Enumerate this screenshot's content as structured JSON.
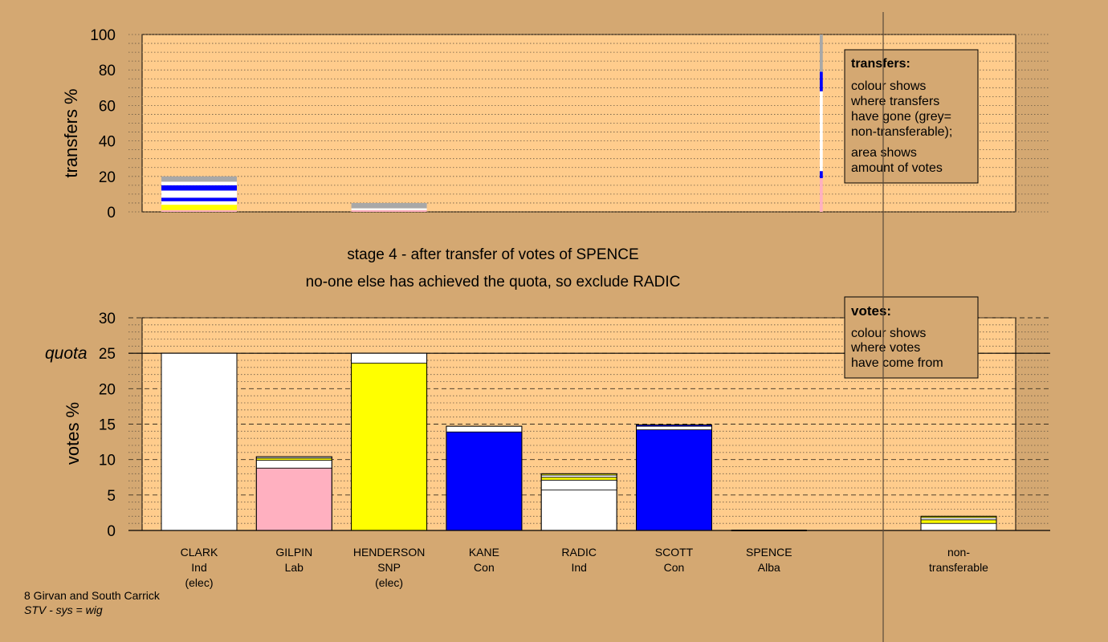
{
  "transfers_chart": {
    "ylabel": "transfers %",
    "ylim": [
      0,
      100
    ],
    "yticks": [
      0,
      20,
      40,
      60,
      80,
      100
    ],
    "legend": {
      "title": "transfers:",
      "lines_a": [
        "colour shows",
        "where transfers",
        "have gone (grey=",
        "non-transferable);"
      ],
      "lines_b": [
        "area shows",
        "amount of votes"
      ]
    }
  },
  "votes_chart": {
    "ylabel": "votes %",
    "ylim": [
      0,
      30
    ],
    "yticks": [
      0,
      5,
      10,
      15,
      20,
      25,
      30
    ],
    "quota_label": "quota",
    "quota_value": 25,
    "legend": {
      "title": "votes:",
      "lines": [
        "colour shows",
        "where votes",
        "have come from"
      ]
    }
  },
  "stage": {
    "line1": "stage 4 - after transfer of votes of SPENCE",
    "line2": "no-one else has achieved the quota, so exclude RADIC"
  },
  "candidates": [
    {
      "name": "CLARK",
      "party": "Ind",
      "note": "(elec)"
    },
    {
      "name": "GILPIN",
      "party": "Lab",
      "note": ""
    },
    {
      "name": "HENDERSON",
      "party": "SNP",
      "note": "(elec)"
    },
    {
      "name": "KANE",
      "party": "Con",
      "note": ""
    },
    {
      "name": "RADIC",
      "party": "Ind",
      "note": ""
    },
    {
      "name": "SCOTT",
      "party": "Con",
      "note": ""
    },
    {
      "name": "SPENCE",
      "party": "Alba",
      "note": ""
    }
  ],
  "nontransferable_label": [
    "non-",
    "transferable"
  ],
  "footer": {
    "ward": "8 Girvan and South Carrick",
    "system": "STV - sys = wig"
  },
  "colors": {
    "background": "#d4a872",
    "plot_area": "#ffcc8c",
    "ind": "#ffffff",
    "lab": "#ffb0c0",
    "snp": "#ffff00",
    "con": "#0000ff",
    "nontransferable": "#a8a8a8"
  },
  "chart_data": [
    {
      "type": "bar",
      "name": "transfers",
      "ylabel": "transfers %",
      "ylim": [
        0,
        100
      ],
      "bars": [
        {
          "position": 0,
          "width": 1.0,
          "segments": [
            {
              "color": "#ffb0c0",
              "value": 1
            },
            {
              "color": "#ffff00",
              "value": 3
            },
            {
              "color": "#ffffff",
              "value": 2
            },
            {
              "color": "#0000ff",
              "value": 2
            },
            {
              "color": "#ffffff",
              "value": 4
            },
            {
              "color": "#0000ff",
              "value": 3
            },
            {
              "color": "#ffffff",
              "value": 2
            },
            {
              "color": "#a8a8a8",
              "value": 3
            }
          ]
        },
        {
          "position": 2,
          "width": 1.0,
          "segments": [
            {
              "color": "#ffb0c0",
              "value": 1
            },
            {
              "color": "#ffffff",
              "value": 1
            },
            {
              "color": "#a8a8a8",
              "value": 3
            }
          ]
        },
        {
          "position": 6.55,
          "width": 0.04,
          "segments": [
            {
              "color": "#ffb0c0",
              "value": 19
            },
            {
              "color": "#0000ff",
              "value": 4
            },
            {
              "color": "#ffffff",
              "value": 45
            },
            {
              "color": "#0000ff",
              "value": 11
            },
            {
              "color": "#a8a8a8",
              "value": 21
            }
          ]
        }
      ]
    },
    {
      "type": "bar",
      "name": "votes",
      "ylabel": "votes %",
      "ylim": [
        0,
        30
      ],
      "quota": 25,
      "categories": [
        "CLARK",
        "GILPIN",
        "HENDERSON",
        "KANE",
        "RADIC",
        "SCOTT",
        "SPENCE",
        "non-transferable"
      ],
      "bars": [
        {
          "candidate": "CLARK",
          "total": 25.0,
          "segments": [
            {
              "color": "#ffffff",
              "value": 25.0
            }
          ]
        },
        {
          "candidate": "GILPIN",
          "total": 10.4,
          "segments": [
            {
              "color": "#ffb0c0",
              "value": 8.8
            },
            {
              "color": "#ffffff",
              "value": 1.1
            },
            {
              "color": "#ffff00",
              "value": 0.3
            },
            {
              "color": "#ffffff",
              "value": 0.2
            }
          ]
        },
        {
          "candidate": "HENDERSON",
          "total": 25.0,
          "segments": [
            {
              "color": "#ffff00",
              "value": 23.6
            },
            {
              "color": "#ffffff",
              "value": 1.4
            }
          ]
        },
        {
          "candidate": "KANE",
          "total": 14.7,
          "segments": [
            {
              "color": "#0000ff",
              "value": 13.9
            },
            {
              "color": "#ffffff",
              "value": 0.8
            }
          ]
        },
        {
          "candidate": "RADIC",
          "total": 8.0,
          "segments": [
            {
              "color": "#ffffff",
              "value": 5.7
            },
            {
              "color": "#ffffff",
              "value": 1.4
            },
            {
              "color": "#ffff00",
              "value": 0.4
            },
            {
              "color": "#ffffff",
              "value": 0.3
            },
            {
              "color": "#ffff00",
              "value": 0.2
            }
          ]
        },
        {
          "candidate": "SCOTT",
          "total": 14.9,
          "segments": [
            {
              "color": "#0000ff",
              "value": 14.2
            },
            {
              "color": "#ffffff",
              "value": 0.5
            },
            {
              "color": "#0000ff",
              "value": 0.2
            }
          ]
        },
        {
          "candidate": "SPENCE",
          "total": 0.0,
          "segments": []
        },
        {
          "candidate": "non-transferable",
          "total": 2.0,
          "segments": [
            {
              "color": "#ffffff",
              "value": 1.0
            },
            {
              "color": "#ffff00",
              "value": 0.5
            },
            {
              "color": "#ffffff",
              "value": 0.3
            },
            {
              "color": "#ffff00",
              "value": 0.2
            }
          ]
        }
      ]
    }
  ]
}
